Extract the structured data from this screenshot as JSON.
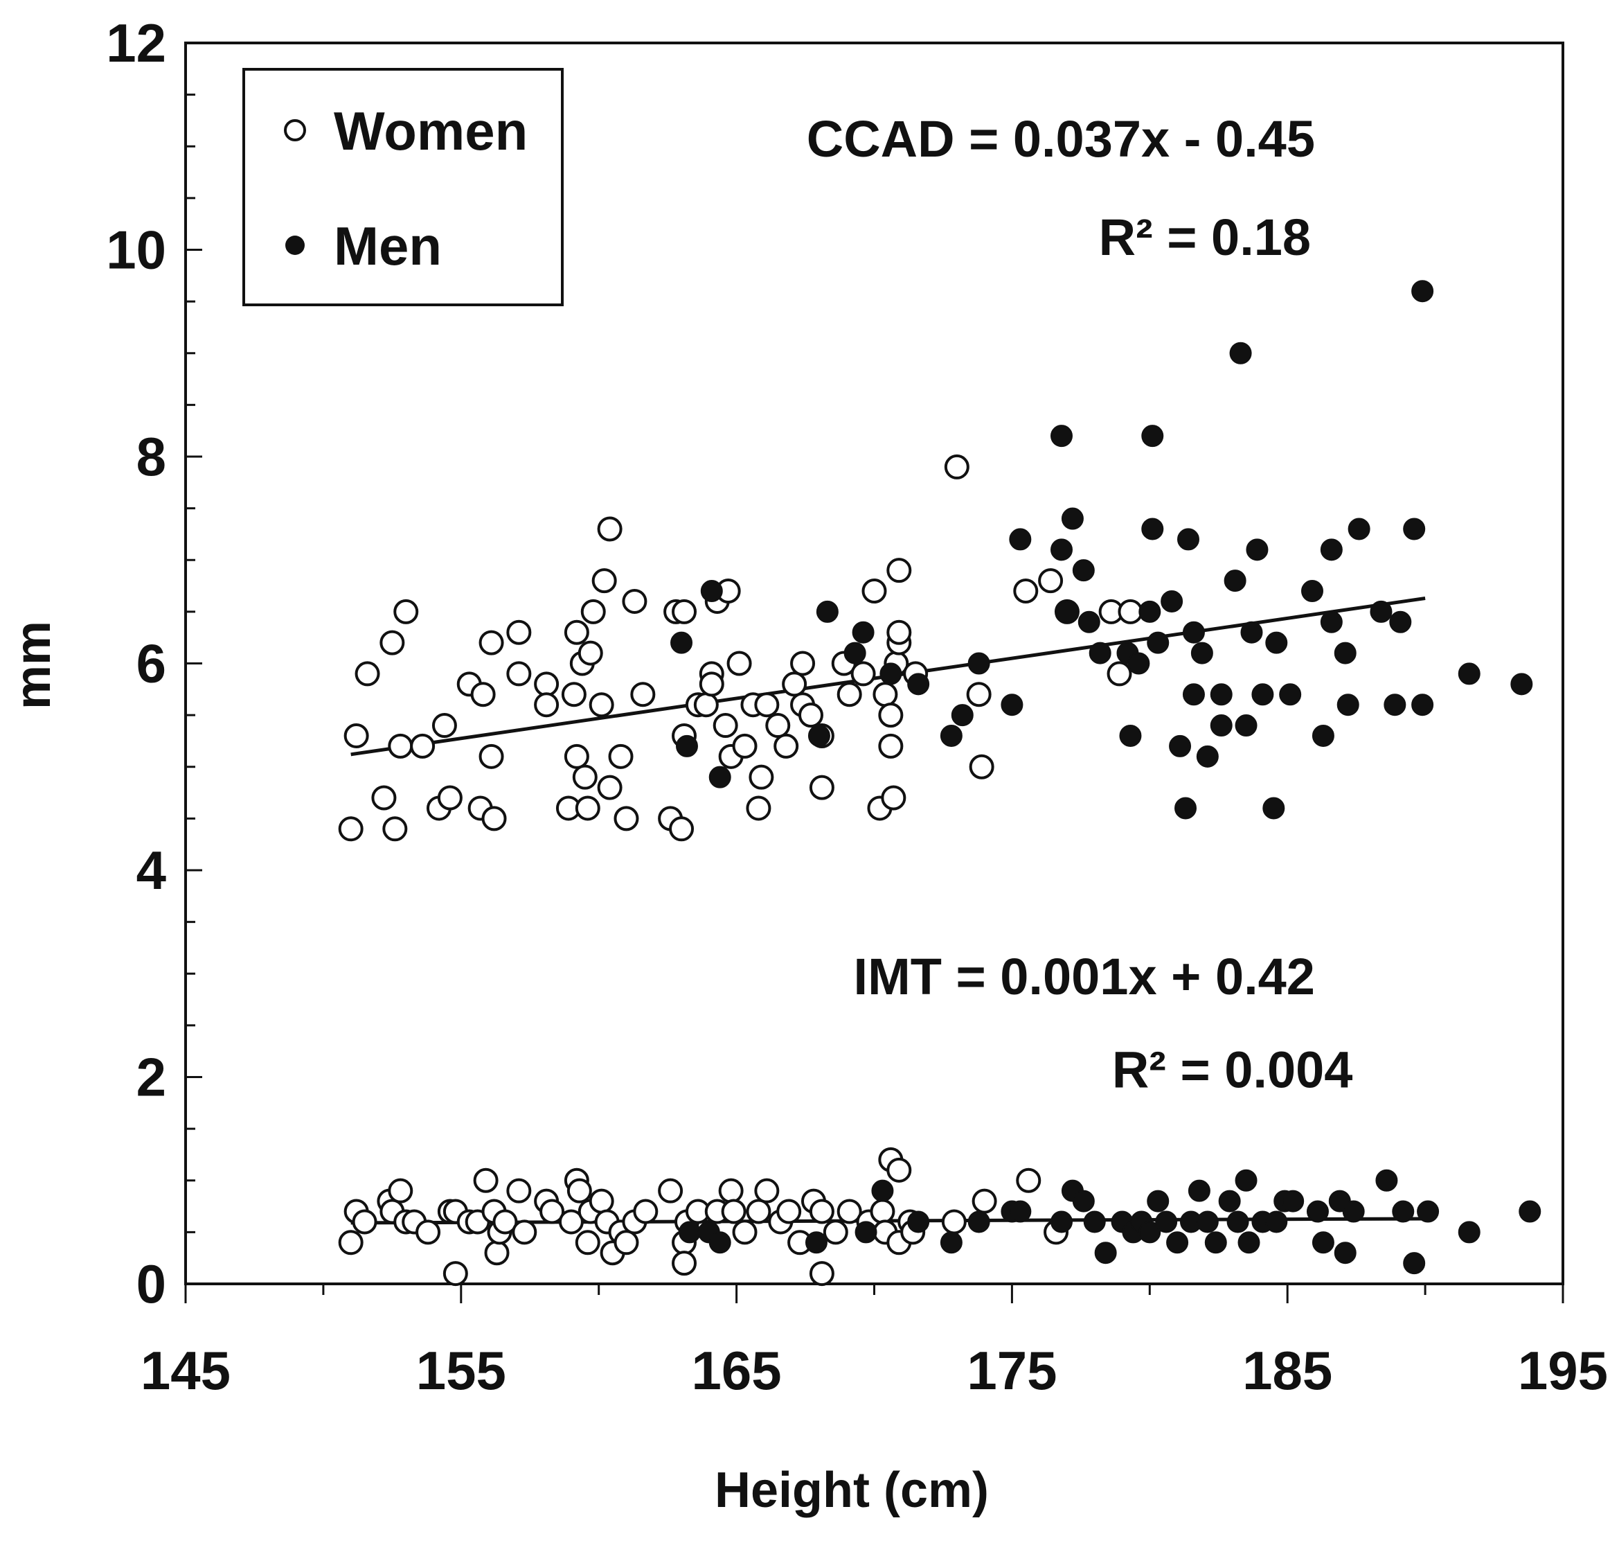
{
  "chart_data": {
    "type": "scatter",
    "xlabel": "Height (cm)",
    "ylabel": "mm",
    "xlim": [
      145,
      195
    ],
    "ylim": [
      0,
      12
    ],
    "xticks": [
      145,
      155,
      165,
      175,
      185,
      195
    ],
    "yticks": [
      0,
      2,
      4,
      6,
      8,
      10,
      12
    ],
    "x_minor_step": 5,
    "y_minor_step": 0.5,
    "grid": false,
    "legend": {
      "position": "top-left",
      "items": [
        {
          "label": "Women",
          "marker": "open-circle"
        },
        {
          "label": "Men",
          "marker": "filled-circle"
        }
      ]
    },
    "annotations": [
      {
        "id": "ccad_eq",
        "text": "CCAD = 0.037x - 0.45",
        "x": 186,
        "y": 10.9
      },
      {
        "id": "ccad_r2",
        "text": "R² = 0.18",
        "x": 182,
        "y": 9.95
      },
      {
        "id": "imt_eq",
        "text": "IMT = 0.001x + 0.42",
        "x": 186,
        "y": 2.8
      },
      {
        "id": "imt_r2",
        "text": "R² = 0.004",
        "x": 183,
        "y": 1.9
      }
    ],
    "trendlines": [
      {
        "name": "CCAD",
        "x": [
          151,
          190
        ],
        "y": [
          5.12,
          6.63
        ]
      },
      {
        "name": "IMT",
        "x": [
          151,
          190
        ],
        "y": [
          0.59,
          0.63
        ]
      }
    ],
    "series": [
      {
        "name": "Women",
        "marker": "open",
        "points": [
          [
            151,
            4.4
          ],
          [
            151.2,
            5.3
          ],
          [
            151.6,
            5.9
          ],
          [
            152.5,
            6.2
          ],
          [
            153,
            6.5
          ],
          [
            152.2,
            4.7
          ],
          [
            152.6,
            4.4
          ],
          [
            152.8,
            5.2
          ],
          [
            153.6,
            5.2
          ],
          [
            154.2,
            4.6
          ],
          [
            154.4,
            5.4
          ],
          [
            154.6,
            4.7
          ],
          [
            155.3,
            5.8
          ],
          [
            155.8,
            5.7
          ],
          [
            155.7,
            4.6
          ],
          [
            156.2,
            4.5
          ],
          [
            156.1,
            6.2
          ],
          [
            156.1,
            5.1
          ],
          [
            157.1,
            6.3
          ],
          [
            157.1,
            5.9
          ],
          [
            158.1,
            5.8
          ],
          [
            158.1,
            5.6
          ],
          [
            158.9,
            4.6
          ],
          [
            159.1,
            5.7
          ],
          [
            159.2,
            5.1
          ],
          [
            159.2,
            6.3
          ],
          [
            159.4,
            6.0
          ],
          [
            159.5,
            4.9
          ],
          [
            159.6,
            4.6
          ],
          [
            159.7,
            6.1
          ],
          [
            159.8,
            6.5
          ],
          [
            160.1,
            5.6
          ],
          [
            160.2,
            6.8
          ],
          [
            160.4,
            7.3
          ],
          [
            160.4,
            4.8
          ],
          [
            160.8,
            5.1
          ],
          [
            161,
            4.5
          ],
          [
            161.3,
            6.6
          ],
          [
            161.6,
            5.7
          ],
          [
            162.6,
            4.5
          ],
          [
            162.8,
            6.5
          ],
          [
            163,
            4.4
          ],
          [
            163.1,
            6.5
          ],
          [
            163.1,
            5.3
          ],
          [
            163.6,
            5.6
          ],
          [
            163.9,
            5.6
          ],
          [
            164.1,
            5.9
          ],
          [
            164.1,
            5.8
          ],
          [
            164.3,
            6.6
          ],
          [
            164.7,
            6.7
          ],
          [
            164.6,
            5.4
          ],
          [
            164.8,
            5.1
          ],
          [
            165.1,
            6.0
          ],
          [
            165.3,
            5.2
          ],
          [
            165.6,
            5.6
          ],
          [
            165.9,
            4.9
          ],
          [
            165.8,
            4.6
          ],
          [
            166.1,
            5.6
          ],
          [
            166.5,
            5.4
          ],
          [
            166.8,
            5.2
          ],
          [
            167.1,
            5.8
          ],
          [
            167.4,
            6.0
          ],
          [
            167.4,
            5.6
          ],
          [
            167.7,
            5.5
          ],
          [
            168.1,
            5.3
          ],
          [
            168.1,
            4.8
          ],
          [
            168.9,
            6.0
          ],
          [
            169.1,
            5.7
          ],
          [
            169.6,
            5.9
          ],
          [
            170,
            6.7
          ],
          [
            170.2,
            4.6
          ],
          [
            170.4,
            5.7
          ],
          [
            170.6,
            5.5
          ],
          [
            170.6,
            5.2
          ],
          [
            170.7,
            4.7
          ],
          [
            170.8,
            6.0
          ],
          [
            170.9,
            6.2
          ],
          [
            170.9,
            6.3
          ],
          [
            170.9,
            6.9
          ],
          [
            171.5,
            5.9
          ],
          [
            173,
            7.9
          ],
          [
            173.8,
            5.7
          ],
          [
            173.9,
            5.0
          ],
          [
            175.5,
            6.7
          ],
          [
            176.4,
            6.8
          ],
          [
            177,
            6.5
          ],
          [
            178.6,
            6.5
          ],
          [
            178.9,
            5.9
          ],
          [
            179.3,
            6.5
          ],
          [
            151,
            0.4
          ],
          [
            151.2,
            0.7
          ],
          [
            151.5,
            0.6
          ],
          [
            152.4,
            0.8
          ],
          [
            152.5,
            0.7
          ],
          [
            152.8,
            0.9
          ],
          [
            153,
            0.6
          ],
          [
            153.3,
            0.6
          ],
          [
            153.8,
            0.5
          ],
          [
            154.6,
            0.7
          ],
          [
            154.8,
            0.7
          ],
          [
            154.8,
            0.1
          ],
          [
            155.3,
            0.6
          ],
          [
            155.6,
            0.6
          ],
          [
            155.9,
            1.0
          ],
          [
            156.2,
            0.7
          ],
          [
            156.3,
            0.3
          ],
          [
            156.4,
            0.5
          ],
          [
            156.6,
            0.6
          ],
          [
            157.1,
            0.9
          ],
          [
            157.3,
            0.5
          ],
          [
            158.1,
            0.8
          ],
          [
            158.3,
            0.7
          ],
          [
            159,
            0.6
          ],
          [
            159.2,
            1.0
          ],
          [
            159.3,
            0.9
          ],
          [
            159.6,
            0.4
          ],
          [
            159.7,
            0.7
          ],
          [
            160.1,
            0.8
          ],
          [
            160.3,
            0.6
          ],
          [
            160.5,
            0.3
          ],
          [
            160.8,
            0.5
          ],
          [
            161,
            0.4
          ],
          [
            161.3,
            0.6
          ],
          [
            161.7,
            0.7
          ],
          [
            162.6,
            0.9
          ],
          [
            163.1,
            0.4
          ],
          [
            163.1,
            0.2
          ],
          [
            163.2,
            0.6
          ],
          [
            163.6,
            0.7
          ],
          [
            164.3,
            0.7
          ],
          [
            164.8,
            0.9
          ],
          [
            164.9,
            0.7
          ],
          [
            165.3,
            0.5
          ],
          [
            165.8,
            0.7
          ],
          [
            166.1,
            0.9
          ],
          [
            166.6,
            0.6
          ],
          [
            166.9,
            0.7
          ],
          [
            167.3,
            0.4
          ],
          [
            167.8,
            0.8
          ],
          [
            168.1,
            0.7
          ],
          [
            168.1,
            0.1
          ],
          [
            168.6,
            0.5
          ],
          [
            169.1,
            0.7
          ],
          [
            169.8,
            0.6
          ],
          [
            170.3,
            0.7
          ],
          [
            170.4,
            0.5
          ],
          [
            170.6,
            1.2
          ],
          [
            170.9,
            1.1
          ],
          [
            170.9,
            0.4
          ],
          [
            171.3,
            0.6
          ],
          [
            171.4,
            0.5
          ],
          [
            172.9,
            0.6
          ],
          [
            174,
            0.8
          ],
          [
            175.6,
            1.0
          ],
          [
            176.6,
            0.5
          ]
        ]
      },
      {
        "name": "Men",
        "marker": "filled",
        "points": [
          [
            163,
            6.2
          ],
          [
            163.2,
            5.2
          ],
          [
            164.1,
            6.7
          ],
          [
            164.4,
            4.9
          ],
          [
            168,
            5.3
          ],
          [
            168.3,
            6.5
          ],
          [
            169.3,
            6.1
          ],
          [
            169.6,
            6.3
          ],
          [
            170.6,
            5.9
          ],
          [
            171.6,
            5.8
          ],
          [
            172.8,
            5.3
          ],
          [
            173.2,
            5.5
          ],
          [
            173.8,
            6.0
          ],
          [
            175,
            5.6
          ],
          [
            175.3,
            7.2
          ],
          [
            176.8,
            7.1
          ],
          [
            176.8,
            8.2
          ],
          [
            177,
            6.5
          ],
          [
            177.2,
            7.4
          ],
          [
            177.6,
            6.9
          ],
          [
            177.8,
            6.4
          ],
          [
            178.2,
            6.1
          ],
          [
            179.2,
            6.1
          ],
          [
            179.3,
            5.3
          ],
          [
            179.6,
            6.0
          ],
          [
            180,
            6.5
          ],
          [
            180.1,
            7.3
          ],
          [
            180.1,
            8.2
          ],
          [
            180.3,
            6.2
          ],
          [
            180.8,
            6.6
          ],
          [
            181.1,
            5.2
          ],
          [
            181.3,
            4.6
          ],
          [
            181.4,
            7.2
          ],
          [
            181.6,
            6.3
          ],
          [
            181.6,
            5.7
          ],
          [
            181.9,
            6.1
          ],
          [
            182.1,
            5.1
          ],
          [
            182.6,
            5.4
          ],
          [
            182.6,
            5.7
          ],
          [
            183.1,
            6.8
          ],
          [
            183.3,
            9.0
          ],
          [
            183.5,
            5.4
          ],
          [
            183.7,
            6.3
          ],
          [
            183.9,
            7.1
          ],
          [
            184.1,
            5.7
          ],
          [
            184.5,
            4.6
          ],
          [
            184.6,
            6.2
          ],
          [
            185.1,
            5.7
          ],
          [
            185.9,
            6.7
          ],
          [
            186.3,
            5.3
          ],
          [
            186.6,
            6.4
          ],
          [
            186.6,
            7.1
          ],
          [
            187.1,
            6.1
          ],
          [
            187.2,
            5.6
          ],
          [
            187.6,
            7.3
          ],
          [
            188.4,
            6.5
          ],
          [
            188.9,
            5.6
          ],
          [
            189.1,
            6.4
          ],
          [
            189.6,
            7.3
          ],
          [
            189.9,
            9.6
          ],
          [
            189.9,
            5.6
          ],
          [
            191.6,
            5.9
          ],
          [
            193.5,
            5.8
          ],
          [
            163.3,
            0.5
          ],
          [
            164,
            0.5
          ],
          [
            164.4,
            0.4
          ],
          [
            167.9,
            0.4
          ],
          [
            169.7,
            0.5
          ],
          [
            170.3,
            0.9
          ],
          [
            171.6,
            0.6
          ],
          [
            172.8,
            0.4
          ],
          [
            173.8,
            0.6
          ],
          [
            175,
            0.7
          ],
          [
            175.3,
            0.7
          ],
          [
            176.8,
            0.6
          ],
          [
            177.2,
            0.9
          ],
          [
            177.6,
            0.8
          ],
          [
            178,
            0.6
          ],
          [
            178.4,
            0.3
          ],
          [
            179,
            0.6
          ],
          [
            179.4,
            0.5
          ],
          [
            179.7,
            0.6
          ],
          [
            180,
            0.5
          ],
          [
            180.3,
            0.8
          ],
          [
            180.6,
            0.6
          ],
          [
            181,
            0.4
          ],
          [
            181.5,
            0.6
          ],
          [
            181.8,
            0.9
          ],
          [
            182.1,
            0.6
          ],
          [
            182.4,
            0.4
          ],
          [
            182.9,
            0.8
          ],
          [
            183.2,
            0.6
          ],
          [
            183.5,
            1.0
          ],
          [
            183.6,
            0.4
          ],
          [
            184.1,
            0.6
          ],
          [
            184.6,
            0.6
          ],
          [
            184.9,
            0.8
          ],
          [
            185.2,
            0.8
          ],
          [
            186.1,
            0.7
          ],
          [
            186.3,
            0.4
          ],
          [
            186.9,
            0.8
          ],
          [
            187.1,
            0.3
          ],
          [
            187.4,
            0.7
          ],
          [
            188.6,
            1.0
          ],
          [
            189.2,
            0.7
          ],
          [
            189.6,
            0.2
          ],
          [
            190.1,
            0.7
          ],
          [
            191.6,
            0.5
          ],
          [
            193.8,
            0.7
          ]
        ]
      }
    ]
  }
}
